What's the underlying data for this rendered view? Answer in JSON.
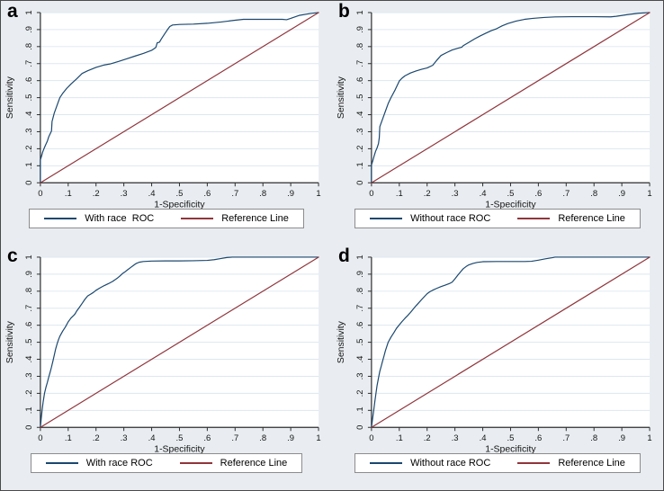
{
  "figure": {
    "bg_color": "#e9edf1",
    "plot_bg": "#ffffff",
    "grid_color": "#dde7f0",
    "axis_color": "#2e2e2e",
    "tick_label_color": "#141414",
    "legend_border_color": "#8c8c8c",
    "roc_color": "#1a476f",
    "reference_color": "#90353b"
  },
  "chart_data": [
    {
      "panel_label": "a",
      "type": "line",
      "xlabel": "1-Specificity",
      "ylabel": "Sensitivity",
      "xticks": [
        "0",
        ".1",
        ".2",
        ".3",
        ".4",
        ".5",
        ".6",
        ".7",
        ".8",
        ".9",
        "1"
      ],
      "yticks": [
        "0",
        ".1",
        ".2",
        ".3",
        ".4",
        ".5",
        ".6",
        ".7",
        ".8",
        ".9",
        "1"
      ],
      "xlim": [
        0,
        1
      ],
      "ylim": [
        0,
        1
      ],
      "grid": "horizontal",
      "legend_position": "bottom",
      "series": [
        {
          "name": "With race  ROC",
          "color": "#1a476f",
          "points": [
            [
              0,
              0
            ],
            [
              0,
              0.135
            ],
            [
              0.004,
              0.155
            ],
            [
              0.008,
              0.18
            ],
            [
              0.013,
              0.2
            ],
            [
              0.018,
              0.22
            ],
            [
              0.025,
              0.245
            ],
            [
              0.03,
              0.27
            ],
            [
              0.04,
              0.305
            ],
            [
              0.042,
              0.36
            ],
            [
              0.05,
              0.41
            ],
            [
              0.06,
              0.455
            ],
            [
              0.07,
              0.5
            ],
            [
              0.08,
              0.525
            ],
            [
              0.095,
              0.555
            ],
            [
              0.11,
              0.58
            ],
            [
              0.13,
              0.61
            ],
            [
              0.15,
              0.642
            ],
            [
              0.17,
              0.658
            ],
            [
              0.2,
              0.678
            ],
            [
              0.23,
              0.692
            ],
            [
              0.25,
              0.698
            ],
            [
              0.28,
              0.712
            ],
            [
              0.31,
              0.728
            ],
            [
              0.34,
              0.744
            ],
            [
              0.37,
              0.76
            ],
            [
              0.4,
              0.778
            ],
            [
              0.415,
              0.795
            ],
            [
              0.42,
              0.822
            ],
            [
              0.428,
              0.826
            ],
            [
              0.435,
              0.845
            ],
            [
              0.445,
              0.87
            ],
            [
              0.455,
              0.895
            ],
            [
              0.465,
              0.918
            ],
            [
              0.475,
              0.927
            ],
            [
              0.5,
              0.93
            ],
            [
              0.55,
              0.932
            ],
            [
              0.6,
              0.937
            ],
            [
              0.65,
              0.945
            ],
            [
              0.7,
              0.955
            ],
            [
              0.73,
              0.96
            ],
            [
              0.87,
              0.96
            ],
            [
              0.885,
              0.958
            ],
            [
              0.9,
              0.966
            ],
            [
              0.93,
              0.983
            ],
            [
              0.97,
              0.994
            ],
            [
              1,
              1
            ]
          ]
        },
        {
          "name": "Reference Line",
          "color": "#90353b",
          "points": [
            [
              0,
              0
            ],
            [
              1,
              1
            ]
          ]
        }
      ]
    },
    {
      "panel_label": "b",
      "type": "line",
      "xlabel": "1-Specificity",
      "ylabel": "Sensitivity",
      "xticks": [
        "0",
        ".1",
        ".2",
        ".3",
        ".4",
        ".5",
        ".6",
        ".7",
        ".8",
        ".9",
        "1"
      ],
      "yticks": [
        "0",
        ".1",
        ".2",
        ".3",
        ".4",
        ".5",
        ".6",
        ".7",
        ".8",
        ".9",
        "1"
      ],
      "xlim": [
        0,
        1
      ],
      "ylim": [
        0,
        1
      ],
      "grid": "horizontal",
      "legend_position": "bottom",
      "series": [
        {
          "name": "Without race ROC",
          "color": "#1a476f",
          "points": [
            [
              0,
              0
            ],
            [
              0,
              0.105
            ],
            [
              0.005,
              0.13
            ],
            [
              0.01,
              0.16
            ],
            [
              0.015,
              0.185
            ],
            [
              0.02,
              0.205
            ],
            [
              0.025,
              0.23
            ],
            [
              0.028,
              0.265
            ],
            [
              0.03,
              0.33
            ],
            [
              0.04,
              0.375
            ],
            [
              0.05,
              0.42
            ],
            [
              0.06,
              0.465
            ],
            [
              0.07,
              0.5
            ],
            [
              0.085,
              0.545
            ],
            [
              0.1,
              0.598
            ],
            [
              0.11,
              0.615
            ],
            [
              0.12,
              0.628
            ],
            [
              0.14,
              0.645
            ],
            [
              0.16,
              0.657
            ],
            [
              0.18,
              0.667
            ],
            [
              0.2,
              0.675
            ],
            [
              0.22,
              0.69
            ],
            [
              0.235,
              0.72
            ],
            [
              0.25,
              0.748
            ],
            [
              0.27,
              0.765
            ],
            [
              0.29,
              0.78
            ],
            [
              0.31,
              0.79
            ],
            [
              0.325,
              0.797
            ],
            [
              0.33,
              0.806
            ],
            [
              0.35,
              0.825
            ],
            [
              0.37,
              0.845
            ],
            [
              0.39,
              0.862
            ],
            [
              0.41,
              0.878
            ],
            [
              0.43,
              0.893
            ],
            [
              0.45,
              0.905
            ],
            [
              0.47,
              0.922
            ],
            [
              0.49,
              0.935
            ],
            [
              0.52,
              0.95
            ],
            [
              0.55,
              0.96
            ],
            [
              0.58,
              0.966
            ],
            [
              0.62,
              0.971
            ],
            [
              0.66,
              0.974
            ],
            [
              0.72,
              0.976
            ],
            [
              0.8,
              0.976
            ],
            [
              0.86,
              0.975
            ],
            [
              0.88,
              0.978
            ],
            [
              0.92,
              0.988
            ],
            [
              0.96,
              0.996
            ],
            [
              1,
              1
            ]
          ]
        },
        {
          "name": "Reference Line",
          "color": "#90353b",
          "points": [
            [
              0,
              0
            ],
            [
              1,
              1
            ]
          ]
        }
      ]
    },
    {
      "panel_label": "c",
      "type": "line",
      "xlabel": "1-Specificity",
      "ylabel": "Sensitivity",
      "xticks": [
        "0",
        ".1",
        ".2",
        ".3",
        ".4",
        ".5",
        ".6",
        ".7",
        ".8",
        ".9",
        "1"
      ],
      "yticks": [
        "0",
        ".1",
        ".2",
        ".3",
        ".4",
        ".5",
        ".6",
        ".7",
        ".8",
        ".9",
        "1"
      ],
      "xlim": [
        0,
        1
      ],
      "ylim": [
        0,
        1
      ],
      "grid": "horizontal",
      "legend_position": "bottom",
      "series": [
        {
          "name": "With race ROC",
          "color": "#1a476f",
          "points": [
            [
              0,
              0
            ],
            [
              0.003,
              0.05
            ],
            [
              0.006,
              0.1
            ],
            [
              0.01,
              0.15
            ],
            [
              0.015,
              0.2
            ],
            [
              0.02,
              0.235
            ],
            [
              0.025,
              0.265
            ],
            [
              0.03,
              0.295
            ],
            [
              0.035,
              0.325
            ],
            [
              0.04,
              0.355
            ],
            [
              0.045,
              0.39
            ],
            [
              0.05,
              0.425
            ],
            [
              0.055,
              0.46
            ],
            [
              0.06,
              0.49
            ],
            [
              0.065,
              0.515
            ],
            [
              0.07,
              0.535
            ],
            [
              0.08,
              0.565
            ],
            [
              0.09,
              0.59
            ],
            [
              0.1,
              0.62
            ],
            [
              0.11,
              0.642
            ],
            [
              0.12,
              0.658
            ],
            [
              0.125,
              0.668
            ],
            [
              0.13,
              0.682
            ],
            [
              0.14,
              0.705
            ],
            [
              0.15,
              0.728
            ],
            [
              0.16,
              0.752
            ],
            [
              0.17,
              0.772
            ],
            [
              0.18,
              0.782
            ],
            [
              0.19,
              0.792
            ],
            [
              0.2,
              0.805
            ],
            [
              0.215,
              0.82
            ],
            [
              0.23,
              0.833
            ],
            [
              0.245,
              0.845
            ],
            [
              0.26,
              0.858
            ],
            [
              0.275,
              0.875
            ],
            [
              0.285,
              0.888
            ],
            [
              0.295,
              0.903
            ],
            [
              0.305,
              0.915
            ],
            [
              0.315,
              0.928
            ],
            [
              0.325,
              0.94
            ],
            [
              0.335,
              0.952
            ],
            [
              0.345,
              0.963
            ],
            [
              0.355,
              0.97
            ],
            [
              0.37,
              0.974
            ],
            [
              0.4,
              0.977
            ],
            [
              0.45,
              0.978
            ],
            [
              0.5,
              0.978
            ],
            [
              0.55,
              0.979
            ],
            [
              0.6,
              0.981
            ],
            [
              0.625,
              0.985
            ],
            [
              0.65,
              0.992
            ],
            [
              0.67,
              0.998
            ],
            [
              0.69,
              1
            ],
            [
              1,
              1
            ]
          ]
        },
        {
          "name": "Reference Line",
          "color": "#90353b",
          "points": [
            [
              0,
              0
            ],
            [
              1,
              1
            ]
          ]
        }
      ]
    },
    {
      "panel_label": "d",
      "type": "line",
      "xlabel": "1-Specificity",
      "ylabel": "Sensitivity",
      "xticks": [
        "0",
        ".1",
        ".2",
        ".3",
        ".4",
        ".5",
        ".6",
        ".7",
        ".8",
        ".9",
        "1"
      ],
      "yticks": [
        "0",
        ".1",
        ".2",
        ".3",
        ".4",
        ".5",
        ".6",
        ".7",
        ".8",
        ".9",
        "1"
      ],
      "xlim": [
        0,
        1
      ],
      "ylim": [
        0,
        1
      ],
      "grid": "horizontal",
      "legend_position": "bottom",
      "series": [
        {
          "name": "Without race ROC",
          "color": "#1a476f",
          "points": [
            [
              0,
              0
            ],
            [
              0.004,
              0.05
            ],
            [
              0.008,
              0.1
            ],
            [
              0.012,
              0.15
            ],
            [
              0.016,
              0.2
            ],
            [
              0.02,
              0.245
            ],
            [
              0.025,
              0.29
            ],
            [
              0.03,
              0.33
            ],
            [
              0.035,
              0.36
            ],
            [
              0.04,
              0.39
            ],
            [
              0.045,
              0.42
            ],
            [
              0.05,
              0.45
            ],
            [
              0.06,
              0.5
            ],
            [
              0.07,
              0.53
            ],
            [
              0.08,
              0.555
            ],
            [
              0.09,
              0.582
            ],
            [
              0.1,
              0.602
            ],
            [
              0.11,
              0.622
            ],
            [
              0.12,
              0.64
            ],
            [
              0.13,
              0.657
            ],
            [
              0.14,
              0.675
            ],
            [
              0.15,
              0.695
            ],
            [
              0.16,
              0.714
            ],
            [
              0.17,
              0.732
            ],
            [
              0.18,
              0.75
            ],
            [
              0.19,
              0.768
            ],
            [
              0.2,
              0.785
            ],
            [
              0.21,
              0.797
            ],
            [
              0.22,
              0.806
            ],
            [
              0.235,
              0.817
            ],
            [
              0.25,
              0.827
            ],
            [
              0.265,
              0.836
            ],
            [
              0.28,
              0.845
            ],
            [
              0.29,
              0.853
            ],
            [
              0.3,
              0.872
            ],
            [
              0.31,
              0.893
            ],
            [
              0.32,
              0.913
            ],
            [
              0.33,
              0.932
            ],
            [
              0.34,
              0.945
            ],
            [
              0.35,
              0.955
            ],
            [
              0.365,
              0.963
            ],
            [
              0.38,
              0.969
            ],
            [
              0.4,
              0.973
            ],
            [
              0.45,
              0.974
            ],
            [
              0.5,
              0.974
            ],
            [
              0.55,
              0.974
            ],
            [
              0.575,
              0.976
            ],
            [
              0.6,
              0.982
            ],
            [
              0.625,
              0.99
            ],
            [
              0.65,
              0.997
            ],
            [
              0.66,
              1
            ],
            [
              1,
              1
            ]
          ]
        },
        {
          "name": "Reference Line",
          "color": "#90353b",
          "points": [
            [
              0,
              0
            ],
            [
              1,
              1
            ]
          ]
        }
      ]
    }
  ]
}
